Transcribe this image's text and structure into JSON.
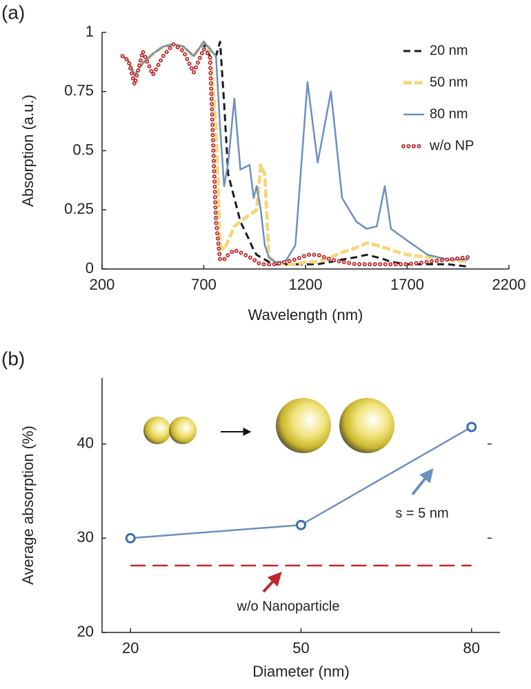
{
  "chart_data": [
    {
      "type": "line",
      "panel_label": "(a)",
      "xlabel": "Wavelength (nm)",
      "ylabel": "Absorption (a.u.)",
      "xlim": [
        200,
        2200
      ],
      "xticks": [
        200,
        700,
        1200,
        1700,
        2200
      ],
      "ylim": [
        0,
        1
      ],
      "yticks": [
        0,
        0.25,
        0.5,
        0.75,
        1
      ],
      "legend": "upper right",
      "x": [
        300,
        330,
        360,
        400,
        450,
        500,
        550,
        600,
        650,
        700,
        730,
        760,
        780,
        800,
        820,
        850,
        880,
        925,
        945,
        960,
        980,
        1000,
        1020,
        1050,
        1100,
        1150,
        1210,
        1260,
        1325,
        1380,
        1450,
        1500,
        1550,
        1590,
        1620,
        1700,
        1800,
        1900,
        2000
      ],
      "series": [
        {
          "name": "20 nm",
          "color": "#1a1a1a",
          "linestyle": "dashed",
          "values": [
            0.9,
            0.88,
            0.82,
            0.87,
            0.91,
            0.94,
            0.95,
            0.94,
            0.9,
            0.95,
            0.9,
            0.9,
            0.96,
            0.7,
            0.4,
            0.3,
            0.2,
            0.12,
            0.08,
            0.06,
            0.05,
            0.04,
            0.03,
            0.02,
            0.02,
            0.02,
            0.02,
            0.02,
            0.03,
            0.04,
            0.05,
            0.06,
            0.05,
            0.04,
            0.03,
            0.02,
            0.02,
            0.02,
            0.01
          ]
        },
        {
          "name": "50 nm",
          "color": "#f5d77a",
          "linestyle": "thick-dashed",
          "values": [
            0.9,
            0.88,
            0.82,
            0.87,
            0.91,
            0.94,
            0.95,
            0.94,
            0.9,
            0.96,
            0.93,
            0.6,
            0.1,
            0.08,
            0.12,
            0.18,
            0.2,
            0.23,
            0.24,
            0.25,
            0.44,
            0.4,
            0.05,
            0.03,
            0.02,
            0.02,
            0.03,
            0.03,
            0.05,
            0.07,
            0.09,
            0.11,
            0.1,
            0.09,
            0.08,
            0.06,
            0.05,
            0.04,
            0.03
          ]
        },
        {
          "name": "80 nm",
          "color": "#6b8fbf",
          "linestyle": "solid",
          "values": [
            0.9,
            0.88,
            0.82,
            0.87,
            0.91,
            0.94,
            0.95,
            0.94,
            0.9,
            0.96,
            0.93,
            0.9,
            0.6,
            0.35,
            0.45,
            0.72,
            0.42,
            0.44,
            0.3,
            0.35,
            0.25,
            0.1,
            0.05,
            0.03,
            0.03,
            0.1,
            0.79,
            0.45,
            0.75,
            0.3,
            0.2,
            0.17,
            0.18,
            0.35,
            0.17,
            0.12,
            0.06,
            0.04,
            0.04
          ]
        },
        {
          "name": "w/o NP",
          "color": "#c0272d",
          "linestyle": "circles",
          "values": [
            0.9,
            0.88,
            0.78,
            0.92,
            0.82,
            0.9,
            0.95,
            0.92,
            0.83,
            0.93,
            0.9,
            0.2,
            0.04,
            0.04,
            0.06,
            0.08,
            0.07,
            0.05,
            0.04,
            0.03,
            0.02,
            0.02,
            0.02,
            0.02,
            0.03,
            0.04,
            0.06,
            0.06,
            0.04,
            0.03,
            0.02,
            0.02,
            0.02,
            0.02,
            0.02,
            0.02,
            0.03,
            0.04,
            0.05
          ]
        }
      ]
    },
    {
      "type": "line",
      "panel_label": "(b)",
      "xlabel": "Diameter (nm)",
      "ylabel": "Average absorption (%)",
      "xlim": [
        15,
        85
      ],
      "xticks": [
        20,
        50,
        80
      ],
      "ylim": [
        20,
        47
      ],
      "yticks": [
        20,
        30,
        40
      ],
      "x": [
        20,
        50,
        80
      ],
      "series": [
        {
          "name": "s = 5 nm",
          "color": "#6b8fbf",
          "linestyle": "solid",
          "marker": "open-circle",
          "values": [
            30,
            31.4,
            41.8
          ]
        },
        {
          "name": "w/o Nanoparticle",
          "color": "#c0272d",
          "linestyle": "long-dashed",
          "values": [
            27.1,
            27.1,
            27.1
          ]
        }
      ]
    }
  ]
}
